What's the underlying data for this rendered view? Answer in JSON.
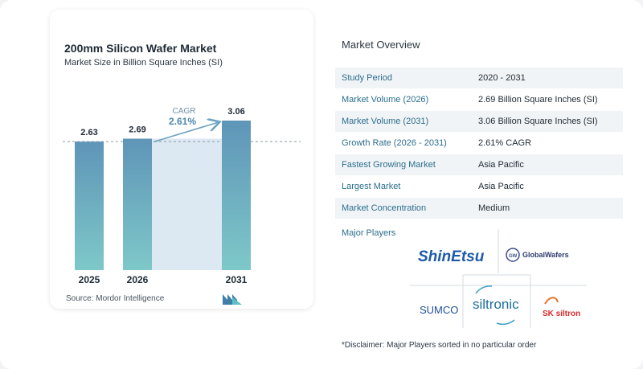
{
  "chart_data": {
    "type": "bar",
    "title": "200mm Silicon Wafer Market",
    "subtitle": "Market Size in Billion Square Inches (SI)",
    "categories": [
      "2025",
      "2026",
      "2031"
    ],
    "values": [
      2.63,
      2.69,
      3.06
    ],
    "value_labels": [
      "2.63",
      "2.69",
      "3.06"
    ],
    "ylim": [
      0,
      3.06
    ],
    "cagr_label": "CAGR",
    "cagr_value": "2.61%",
    "bar_color_top": "#5f95b8",
    "bar_color_bottom": "#7ec8c9",
    "span_fill": "#dde9f2",
    "arrow_color": "#6ea3c2",
    "grid": false
  },
  "source": "Source:  Mordor Intelligence",
  "overview": {
    "title": "Market Overview",
    "rows": [
      {
        "label": "Study Period",
        "value": "2020 - 2031"
      },
      {
        "label": "Market Volume (2026)",
        "value": "2.69 Billion Square Inches (SI)"
      },
      {
        "label": "Market Volume (2031)",
        "value": "3.06 Billion Square Inches (SI)"
      },
      {
        "label": "Growth Rate (2026 - 2031)",
        "value": "2.61% CAGR"
      },
      {
        "label": "Fastest Growing Market",
        "value": "Asia Pacific"
      },
      {
        "label": "Largest Market",
        "value": "Asia Pacific"
      },
      {
        "label": "Market Concentration",
        "value": "Medium"
      }
    ]
  },
  "players": {
    "title": "Major Players",
    "logos": [
      "ShinEtsu",
      "GlobalWafers",
      "SUMCO",
      "siltronic",
      "SK siltron"
    ]
  },
  "disclaimer": "*Disclaimer: Major Players sorted in no particular order"
}
